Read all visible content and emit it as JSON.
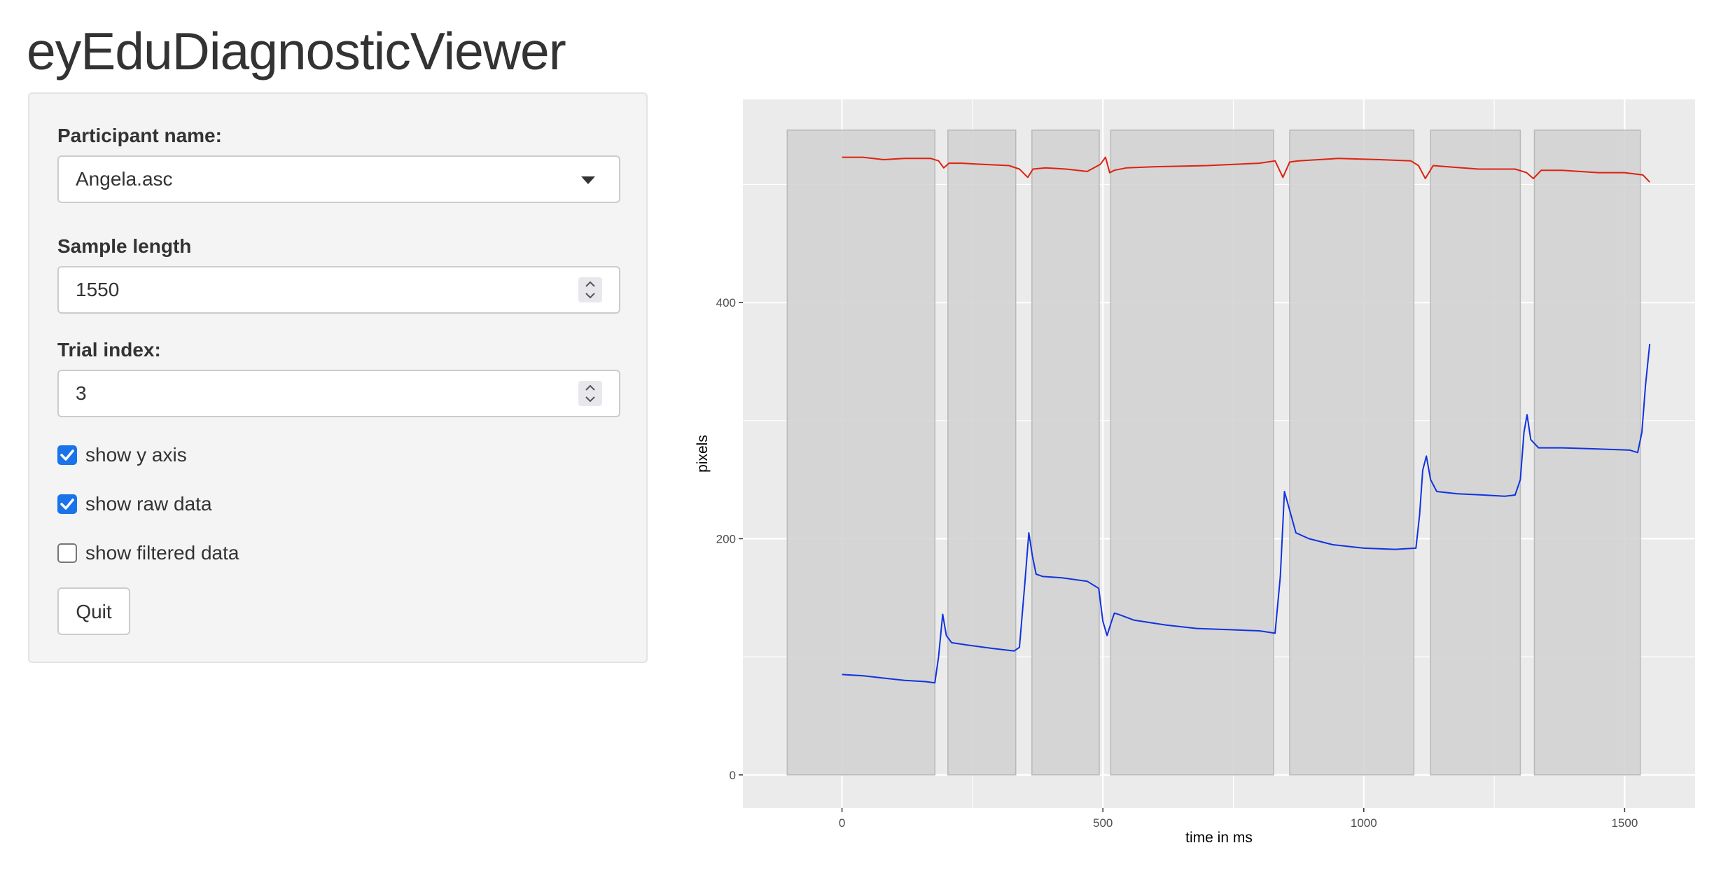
{
  "app": {
    "title": "eyEduDiagnosticViewer"
  },
  "sidebar": {
    "participant": {
      "label": "Participant name:",
      "value": "Angela.asc"
    },
    "sample_length": {
      "label": "Sample length",
      "value": "1550"
    },
    "trial_index": {
      "label": "Trial index:",
      "value": "3"
    },
    "checkboxes": [
      {
        "label": "show y axis",
        "checked": true
      },
      {
        "label": "show raw data",
        "checked": true
      },
      {
        "label": "show filtered data",
        "checked": false
      }
    ],
    "quit_label": "Quit"
  },
  "colors": {
    "checkbox_on": "#1a73e8",
    "panel_bg": "#ebebeb",
    "rect_fill": "#d1d1d1",
    "x_series": "#dd2211",
    "y_series": "#1133dd"
  },
  "chart_data": {
    "type": "line",
    "xlabel": "time in ms",
    "ylabel": "pixels",
    "xlim": [
      -190,
      1635
    ],
    "ylim": [
      -28,
      572
    ],
    "x_ticks": [
      0,
      500,
      1000,
      1500
    ],
    "y_ticks": [
      0,
      200,
      400
    ],
    "grid": true,
    "legend": "none",
    "fixation_intervals": [
      {
        "start": -105,
        "end": 178,
        "y_max": 546
      },
      {
        "start": 203,
        "end": 333,
        "y_max": 546
      },
      {
        "start": 364,
        "end": 493,
        "y_max": 546
      },
      {
        "start": 515,
        "end": 827,
        "y_max": 546
      },
      {
        "start": 858,
        "end": 1096,
        "y_max": 546
      },
      {
        "start": 1128,
        "end": 1300,
        "y_max": 546
      },
      {
        "start": 1327,
        "end": 1530,
        "y_max": 546
      }
    ],
    "series": [
      {
        "color": "#dd2211",
        "x": [
          0,
          40,
          80,
          120,
          170,
          185,
          195,
          205,
          230,
          270,
          320,
          340,
          356,
          366,
          390,
          430,
          470,
          495,
          505,
          513,
          522,
          545,
          600,
          700,
          800,
          830,
          845,
          858,
          875,
          950,
          1030,
          1090,
          1105,
          1118,
          1133,
          1160,
          1220,
          1290,
          1312,
          1325,
          1340,
          1380,
          1450,
          1500,
          1535,
          1548
        ],
        "y": [
          523,
          523,
          521,
          522,
          522,
          520,
          514,
          518,
          518,
          517,
          516,
          513,
          506,
          513,
          514,
          513,
          511,
          517,
          523,
          510,
          512,
          514,
          515,
          516,
          518,
          520,
          506,
          519,
          520,
          522,
          521,
          520,
          516,
          505,
          516,
          515,
          513,
          513,
          510,
          505,
          512,
          512,
          510,
          510,
          508,
          502
        ]
      },
      {
        "color": "#1133dd",
        "x": [
          0,
          40,
          80,
          120,
          160,
          178,
          185,
          193,
          200,
          210,
          240,
          290,
          330,
          340,
          350,
          358,
          365,
          372,
          385,
          420,
          470,
          492,
          500,
          508,
          515,
          522,
          530,
          560,
          620,
          680,
          740,
          800,
          830,
          840,
          848,
          858,
          870,
          895,
          940,
          1000,
          1060,
          1100,
          1107,
          1113,
          1120,
          1128,
          1140,
          1180,
          1230,
          1270,
          1290,
          1300,
          1307,
          1313,
          1320,
          1335,
          1380,
          1450,
          1510,
          1525,
          1533,
          1540,
          1548
        ],
        "y": [
          85,
          84,
          82,
          80,
          79,
          78,
          100,
          136,
          118,
          112,
          110,
          107,
          105,
          108,
          160,
          205,
          185,
          170,
          168,
          167,
          164,
          158,
          130,
          118,
          128,
          137,
          136,
          131,
          127,
          124,
          123,
          122,
          120,
          168,
          240,
          224,
          205,
          200,
          195,
          192,
          191,
          192,
          220,
          258,
          270,
          250,
          240,
          238,
          237,
          236,
          237,
          250,
          290,
          305,
          284,
          277,
          277,
          276,
          275,
          273,
          290,
          330,
          365
        ]
      }
    ]
  }
}
